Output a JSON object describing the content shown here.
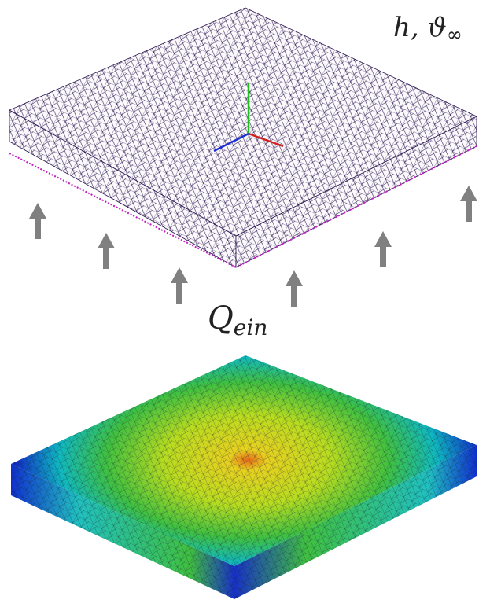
{
  "top_label": {
    "base": "h, ϑ",
    "subscript": "∞"
  },
  "bottom_label": {
    "base": "Q",
    "subscript": "ein"
  }
}
